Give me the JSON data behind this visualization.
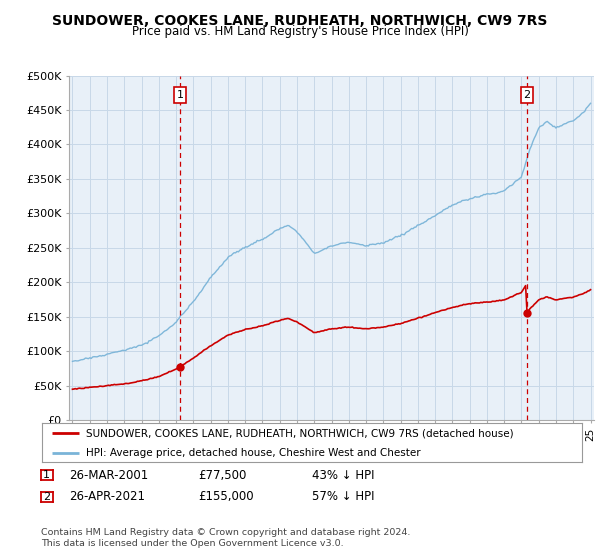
{
  "title": "SUNDOWER, COOKES LANE, RUDHEATH, NORTHWICH, CW9 7RS",
  "subtitle": "Price paid vs. HM Land Registry's House Price Index (HPI)",
  "hpi_color": "#7ab4d8",
  "price_color": "#cc0000",
  "dashed_color": "#cc0000",
  "bg_plot_color": "#e8f0f8",
  "ylim": [
    0,
    500000
  ],
  "yticks": [
    0,
    50000,
    100000,
    150000,
    200000,
    250000,
    300000,
    350000,
    400000,
    450000,
    500000
  ],
  "ytick_labels": [
    "£0",
    "£50K",
    "£100K",
    "£150K",
    "£200K",
    "£250K",
    "£300K",
    "£350K",
    "£400K",
    "£450K",
    "£500K"
  ],
  "sale1_year": 2001.23,
  "sale1_price": 77500,
  "sale1_label": "1",
  "sale2_year": 2021.32,
  "sale2_price": 155000,
  "sale2_label": "2",
  "legend_red": "SUNDOWER, COOKES LANE, RUDHEATH, NORTHWICH, CW9 7RS (detached house)",
  "legend_blue": "HPI: Average price, detached house, Cheshire West and Chester",
  "table_row1": [
    "1",
    "26-MAR-2001",
    "£77,500",
    "43% ↓ HPI"
  ],
  "table_row2": [
    "2",
    "26-APR-2021",
    "£155,000",
    "57% ↓ HPI"
  ],
  "footnote": "Contains HM Land Registry data © Crown copyright and database right 2024.\nThis data is licensed under the Open Government Licence v3.0.",
  "bg_color": "#ffffff",
  "grid_color": "#c8d8e8"
}
